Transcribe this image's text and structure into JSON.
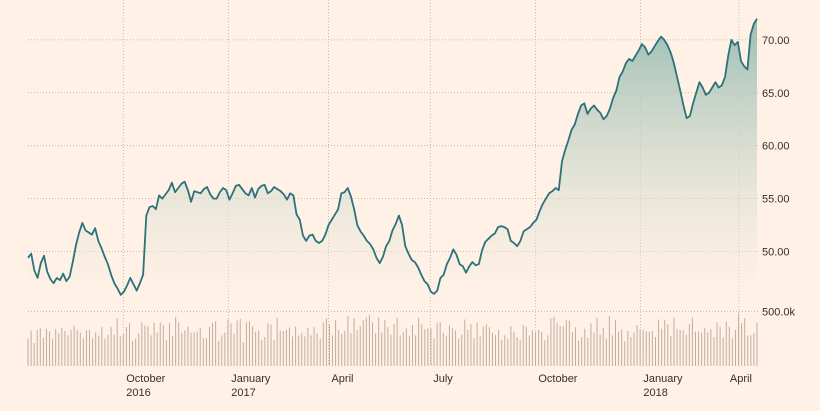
{
  "chart_data": {
    "type": "line",
    "title": "",
    "xlabel": "",
    "ylabel": "",
    "ylim": [
      45.7,
      73.2
    ],
    "y_ticks": [
      {
        "value": 70,
        "label": "70.00"
      },
      {
        "value": 65,
        "label": "65.00"
      },
      {
        "value": 60,
        "label": "60.00"
      },
      {
        "value": 55,
        "label": "55.00"
      },
      {
        "value": 50,
        "label": "50.00"
      }
    ],
    "x_ticks": [
      {
        "index": 58,
        "label": "October",
        "sublabel": "2016"
      },
      {
        "index": 122,
        "label": "January",
        "sublabel": "2017"
      },
      {
        "index": 183,
        "label": "April",
        "sublabel": ""
      },
      {
        "index": 245,
        "label": "July",
        "sublabel": ""
      },
      {
        "index": 309,
        "label": "October",
        "sublabel": ""
      },
      {
        "index": 373,
        "label": "January",
        "sublabel": "2018"
      },
      {
        "index": 433,
        "label": "April",
        "sublabel": ""
      }
    ],
    "x_count": 445,
    "line_color": "#2c727a",
    "area_top_color": "#9bbdb3",
    "volume_color": "#c3aca0",
    "series": [
      {
        "values": [
          49.4,
          49.8,
          48.2,
          47.5,
          48.9,
          49.6,
          48.1,
          47.4,
          47.0,
          47.5,
          47.3,
          47.9,
          47.2,
          47.6,
          49.0,
          50.6,
          51.8,
          52.7,
          52.0,
          51.8,
          51.6,
          52.2,
          51.0,
          50.3,
          49.5,
          48.8,
          47.8,
          47.0,
          46.5,
          45.9,
          46.2,
          46.8,
          47.5,
          46.9,
          46.3,
          47.0,
          47.8,
          53.4,
          54.2,
          54.3,
          54.0,
          55.3,
          55.0,
          55.4,
          55.8,
          56.5,
          55.6,
          56.0,
          56.4,
          56.6,
          55.8,
          54.7,
          55.7,
          55.6,
          55.5,
          55.9,
          56.1,
          55.4,
          55.0,
          55.0,
          55.6,
          56.0,
          55.8,
          54.9,
          55.5,
          56.2,
          56.3,
          55.9,
          55.5,
          55.3,
          56.0,
          55.1,
          55.9,
          56.2,
          56.3,
          55.5,
          55.7,
          56.1,
          55.9,
          55.7,
          55.4,
          54.9,
          55.5,
          55.3,
          53.5,
          53.0,
          51.5,
          51.0,
          51.5,
          51.6,
          51.0,
          50.8,
          51.0,
          51.6,
          52.5,
          53.0,
          53.5,
          54.0,
          55.5,
          55.6,
          56.0,
          55.2,
          54.0,
          52.5,
          51.9,
          51.5,
          51.0,
          50.7,
          50.2,
          49.4,
          48.9,
          49.5,
          50.5,
          51.0,
          52.0,
          52.6,
          53.4,
          52.5,
          50.5,
          49.8,
          49.2,
          49.0,
          48.5,
          47.8,
          47.2,
          46.9,
          46.2,
          46.0,
          46.3,
          47.5,
          47.8,
          48.8,
          49.4,
          50.2,
          49.7,
          48.8,
          48.6,
          48.0,
          48.6,
          49.0,
          48.7,
          48.8,
          50.1,
          50.9,
          51.2,
          51.5,
          51.7,
          52.3,
          52.4,
          52.3,
          52.1,
          51.0,
          50.8,
          50.5,
          51.0,
          51.9,
          52.1,
          52.3,
          52.7,
          53.0,
          53.8,
          54.5,
          55.0,
          55.5,
          55.7,
          56.0,
          55.8,
          58.5,
          59.6,
          60.5,
          61.5,
          62.0,
          63.0,
          63.8,
          64.0,
          63.0,
          63.5,
          63.8,
          63.4,
          63.1,
          62.5,
          62.8,
          63.5,
          64.5,
          65.2,
          66.5,
          67.0,
          67.8,
          68.2,
          68.0,
          68.5,
          69.0,
          69.6,
          69.3,
          68.6,
          68.9,
          69.4,
          69.9,
          70.3,
          70.0,
          69.5,
          68.8,
          67.8,
          66.5,
          65.2,
          63.8,
          62.6,
          62.8,
          64.0,
          65.0,
          66.0,
          65.5,
          64.8,
          65.0,
          65.5,
          66.0,
          65.5,
          65.7,
          66.5,
          68.5,
          70.0,
          69.5,
          69.8,
          68.0,
          67.5,
          67.2,
          70.5,
          71.5,
          72.0
        ]
      }
    ],
    "volume": {
      "tick_label": "500.0k",
      "tick_value": 500000,
      "max": 640000,
      "values": [
        250000,
        325000,
        210000,
        330000,
        345000,
        260000,
        340000,
        315000,
        250000,
        335000,
        300000,
        350000,
        320000,
        280000,
        330000,
        370000,
        330000,
        305000,
        255000,
        325000,
        330000,
        255000,
        310000,
        275000,
        355000,
        250000,
        285000,
        360000,
        285000,
        435000,
        270000,
        290000,
        355000,
        390000,
        230000,
        250000,
        300000,
        400000,
        370000,
        365000,
        280000,
        395000,
        305000,
        395000,
        375000,
        235000,
        390000,
        275000,
        450000,
        400000,
        305000,
        325000,
        360000,
        305000,
        310000,
        315000,
        345000,
        255000,
        255000,
        360000,
        395000,
        410000,
        230000,
        280000,
        305000,
        425000,
        390000,
        295000,
        415000,
        430000,
        215000,
        400000,
        410000,
        360000,
        315000,
        325000,
        240000,
        265000,
        390000,
        380000,
        235000,
        440000,
        325000,
        320000,
        330000,
        350000,
        270000,
        360000,
        280000,
        300000,
        270000,
        350000,
        280000,
        355000,
        300000,
        250000,
        400000,
        435000,
        380000,
        280000,
        420000,
        330000,
        295000,
        320000,
        455000,
        300000,
        435000,
        330000,
        365000,
        420000,
        440000,
        465000,
        400000,
        300000,
        445000,
        305000,
        420000,
        355000,
        285000,
        385000,
        440000,
        280000,
        310000,
        345000,
        275000,
        375000,
        280000,
        440000,
        380000,
        335000,
        345000,
        345000,
        255000,
        395000,
        400000,
        305000,
        275000,
        370000,
        345000,
        325000,
        250000,
        285000,
        425000,
        330000,
        385000,
        255000,
        395000,
        270000,
        360000,
        380000,
        355000,
        305000,
        285000,
        330000,
        240000,
        280000,
        250000,
        365000,
        315000,
        265000,
        240000,
        375000,
        360000,
        280000,
        325000,
        310000,
        330000,
        315000,
        235000,
        280000,
        435000,
        450000,
        395000,
        365000,
        365000,
        420000,
        415000,
        310000,
        355000,
        230000,
        265000,
        340000,
        260000,
        390000,
        305000,
        440000,
        285000,
        350000,
        250000,
        455000,
        280000,
        420000,
        315000,
        335000,
        225000,
        320000,
        265000,
        305000,
        375000,
        335000,
        330000,
        315000,
        315000,
        320000,
        265000,
        425000,
        340000,
        420000,
        380000,
        275000,
        440000,
        335000,
        330000,
        325000,
        285000,
        380000,
        440000,
        315000,
        315000,
        305000,
        345000,
        310000,
        335000,
        265000,
        400000,
        360000,
        260000,
        405000,
        360000,
        255000,
        330000,
        480000,
        390000,
        435000,
        280000,
        280000,
        305000,
        395000
      ]
    }
  }
}
